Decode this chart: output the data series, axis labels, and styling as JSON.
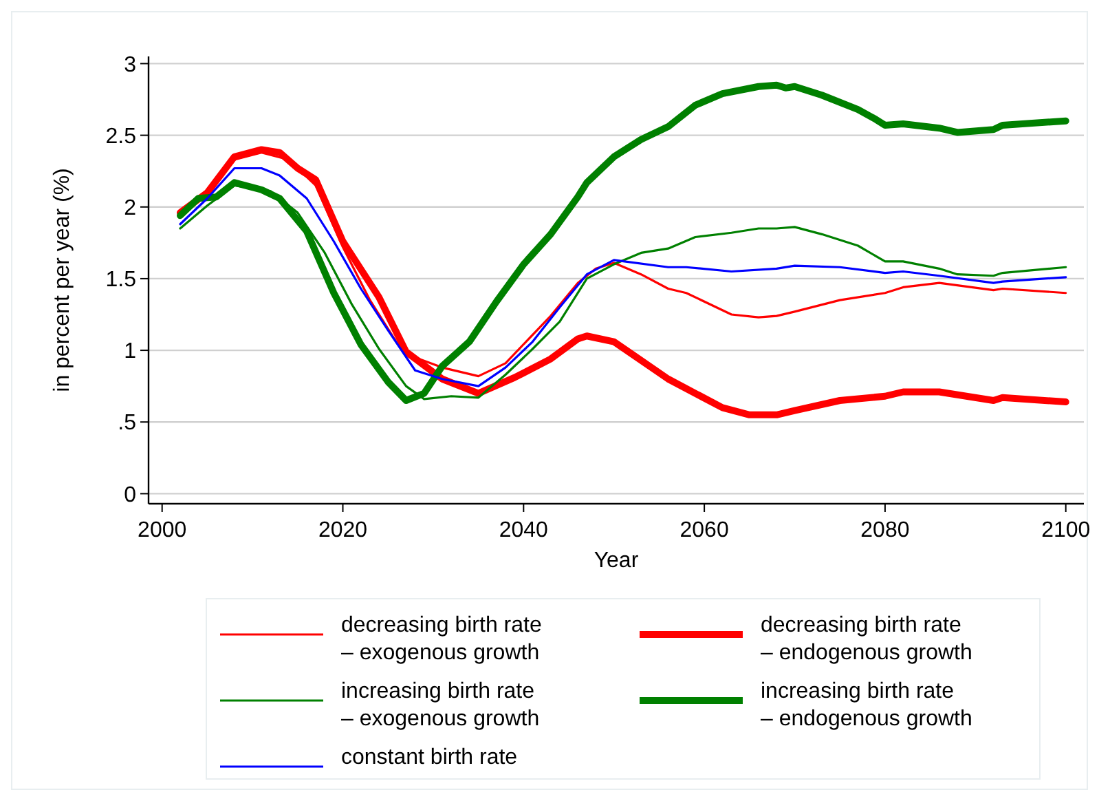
{
  "chart_data": {
    "type": "line",
    "xlabel": "Year",
    "ylabel": "in percent per year (%)",
    "xlim": [
      1998.5,
      2102
    ],
    "ylim": [
      -0.07,
      3.05
    ],
    "xticks": [
      2000,
      2020,
      2040,
      2060,
      2080,
      2100
    ],
    "yticks": [
      0,
      {
        "value": 0.5,
        "label": ".5"
      },
      1,
      1.5,
      2,
      2.5,
      3
    ],
    "grid": "y",
    "legend": "bottom",
    "line_style": "solid",
    "marker": "none",
    "series": [
      {
        "name": "decreasing birth rate\n– exogenous growth",
        "color": "#ff0000",
        "x": [
          2002,
          2005,
          2008,
          2011,
          2014,
          2017,
          2020,
          2023,
          2026,
          2028,
          2031,
          2035,
          2038,
          2043,
          2046,
          2048,
          2050,
          2053,
          2056,
          2058,
          2063,
          2066,
          2068,
          2070,
          2075,
          2080,
          2082,
          2086,
          2092,
          2093,
          2100
        ],
        "values": [
          1.97,
          2.08,
          2.33,
          2.38,
          2.33,
          2.15,
          1.72,
          1.35,
          1.05,
          0.95,
          0.88,
          0.82,
          0.91,
          1.24,
          1.47,
          1.57,
          1.61,
          1.53,
          1.43,
          1.4,
          1.25,
          1.23,
          1.24,
          1.27,
          1.35,
          1.4,
          1.44,
          1.47,
          1.42,
          1.43,
          1.4
        ]
      },
      {
        "name": "decreasing birth rate\n– endogenous growth",
        "color": "#ff0000",
        "x": [
          2002,
          2005,
          2008,
          2011,
          2013,
          2015,
          2017,
          2020,
          2024,
          2027,
          2031,
          2035,
          2039,
          2043,
          2046,
          2047,
          2050,
          2056,
          2062,
          2065,
          2068,
          2070,
          2075,
          2080,
          2082,
          2086,
          2092,
          2093,
          2100
        ],
        "values": [
          1.96,
          2.1,
          2.35,
          2.4,
          2.38,
          2.27,
          2.19,
          1.76,
          1.37,
          0.99,
          0.8,
          0.7,
          0.81,
          0.94,
          1.08,
          1.1,
          1.06,
          0.8,
          0.6,
          0.55,
          0.55,
          0.58,
          0.65,
          0.68,
          0.71,
          0.71,
          0.65,
          0.67,
          0.64
        ]
      },
      {
        "name": "increasing birth rate\n– exogenous growth",
        "color": "#008000",
        "x": [
          2002,
          2005,
          2008,
          2012,
          2015,
          2018,
          2021,
          2024,
          2027,
          2029,
          2032,
          2035,
          2038,
          2041,
          2044,
          2047,
          2050,
          2053,
          2056,
          2059,
          2063,
          2066,
          2068,
          2070,
          2073,
          2077,
          2080,
          2082,
          2086,
          2088,
          2092,
          2093,
          2100
        ],
        "values": [
          1.85,
          2.01,
          2.15,
          2.11,
          1.96,
          1.68,
          1.32,
          1.01,
          0.75,
          0.66,
          0.68,
          0.67,
          0.83,
          1.01,
          1.2,
          1.5,
          1.6,
          1.68,
          1.71,
          1.79,
          1.82,
          1.85,
          1.85,
          1.86,
          1.81,
          1.73,
          1.62,
          1.62,
          1.57,
          1.53,
          1.52,
          1.54,
          1.58
        ]
      },
      {
        "name": "increasing birth rate\n– endogenous growth",
        "color": "#008000",
        "x": [
          2002,
          2004,
          2006,
          2008,
          2011,
          2013,
          2016,
          2019,
          2022,
          2025,
          2027,
          2029,
          2031,
          2034,
          2037,
          2040,
          2043,
          2046,
          2047,
          2050,
          2053,
          2056,
          2059,
          2062,
          2066,
          2068,
          2069,
          2070,
          2073,
          2077,
          2079,
          2080,
          2082,
          2086,
          2088,
          2092,
          2093,
          2100
        ],
        "values": [
          1.94,
          2.06,
          2.07,
          2.17,
          2.12,
          2.06,
          1.83,
          1.4,
          1.04,
          0.78,
          0.65,
          0.7,
          0.89,
          1.06,
          1.34,
          1.6,
          1.81,
          2.07,
          2.17,
          2.35,
          2.47,
          2.56,
          2.71,
          2.79,
          2.84,
          2.85,
          2.83,
          2.84,
          2.78,
          2.68,
          2.61,
          2.57,
          2.58,
          2.55,
          2.52,
          2.54,
          2.57,
          2.6
        ]
      },
      {
        "name": "constant birth rate",
        "color": "#0000ff",
        "x": [
          2002,
          2005,
          2008,
          2011,
          2013,
          2016,
          2019,
          2022,
          2025,
          2028,
          2031,
          2035,
          2038,
          2041,
          2044,
          2047,
          2050,
          2056,
          2058,
          2063,
          2068,
          2070,
          2075,
          2080,
          2082,
          2086,
          2092,
          2093,
          2100
        ],
        "values": [
          1.88,
          2.06,
          2.27,
          2.27,
          2.22,
          2.06,
          1.76,
          1.43,
          1.14,
          0.86,
          0.8,
          0.75,
          0.88,
          1.06,
          1.3,
          1.53,
          1.63,
          1.58,
          1.58,
          1.55,
          1.57,
          1.59,
          1.58,
          1.54,
          1.55,
          1.52,
          1.47,
          1.48,
          1.51
        ]
      }
    ]
  }
}
